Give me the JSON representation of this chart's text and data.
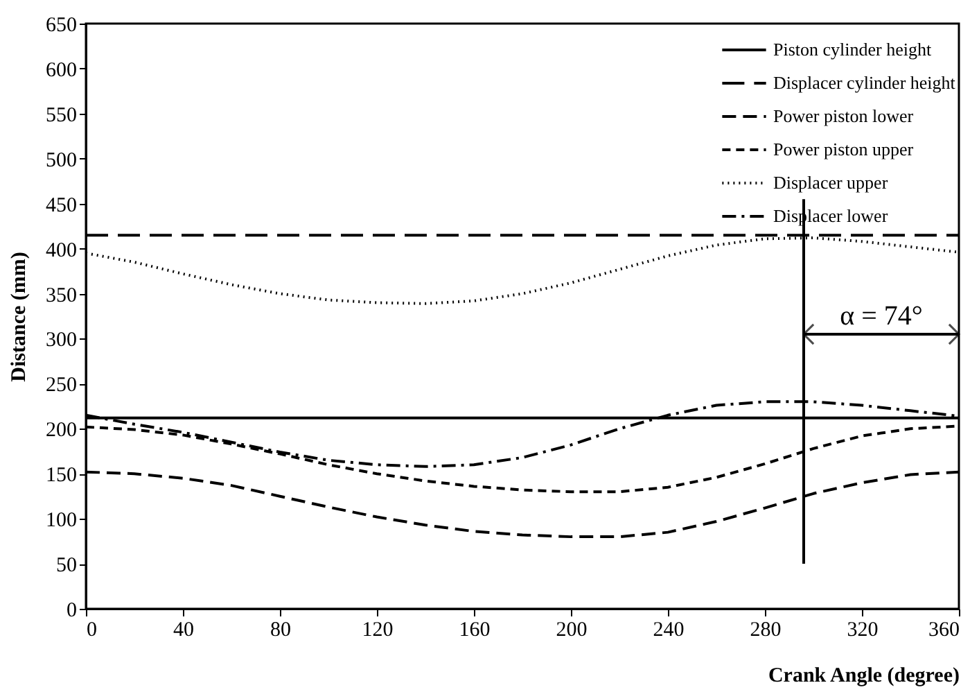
{
  "chart_data": {
    "type": "line",
    "xlabel": "Crank Angle (degree)",
    "ylabel": "Distance (mm)",
    "xlim": [
      0,
      360
    ],
    "xticks": [
      0,
      40,
      80,
      120,
      160,
      200,
      240,
      280,
      320,
      360
    ],
    "ylim": [
      0,
      650
    ],
    "yticks": [
      0,
      50,
      100,
      150,
      200,
      250,
      300,
      350,
      400,
      450,
      500,
      550,
      600,
      650
    ],
    "grid": false,
    "legend": "top right",
    "marker": "none",
    "series": [
      {
        "name": "Piston cylinder height",
        "color": "#000000",
        "line_style": "solid",
        "x": [
          0,
          360
        ],
        "values": [
          212,
          212
        ]
      },
      {
        "name": "Displacer cylinder height",
        "color": "#000000",
        "line_style": "longdash",
        "x": [
          0,
          360
        ],
        "values": [
          415,
          415
        ]
      },
      {
        "name": "Power piston lower",
        "color": "#000000",
        "line_style": "dashed",
        "x": [
          0,
          20,
          40,
          60,
          80,
          100,
          120,
          140,
          160,
          180,
          200,
          220,
          240,
          260,
          280,
          300,
          320,
          340,
          360
        ],
        "values": [
          152,
          150,
          145,
          137,
          125,
          113,
          102,
          93,
          86,
          82,
          80,
          80,
          85,
          97,
          112,
          128,
          140,
          149,
          152
        ]
      },
      {
        "name": "Power piston upper",
        "color": "#000000",
        "line_style": "shortdash",
        "x": [
          0,
          20,
          40,
          60,
          80,
          100,
          120,
          140,
          160,
          180,
          200,
          220,
          240,
          260,
          280,
          300,
          320,
          340,
          360
        ],
        "values": [
          202,
          199,
          193,
          183,
          172,
          160,
          150,
          142,
          136,
          132,
          130,
          130,
          135,
          146,
          161,
          178,
          192,
          200,
          203
        ]
      },
      {
        "name": "Displacer upper",
        "color": "#000000",
        "line_style": "dotted",
        "x": [
          0,
          20,
          40,
          60,
          80,
          100,
          120,
          140,
          160,
          180,
          200,
          220,
          240,
          260,
          280,
          300,
          320,
          340,
          360
        ],
        "values": [
          395,
          385,
          372,
          360,
          350,
          343,
          340,
          339,
          342,
          350,
          362,
          377,
          392,
          404,
          411,
          412,
          408,
          402,
          396
        ]
      },
      {
        "color": "#000000",
        "line_style": "solid",
        "x": [
          296,
          296
        ],
        "values": [
          50,
          455
        ]
      },
      {
        "color": "#000000",
        "line_style": "solid",
        "x": [
          296,
          360
        ],
        "values": [
          305,
          305
        ]
      },
      {
        "name": "Displacer lower",
        "color": "#000000",
        "line_style": "dashdot",
        "x": [
          0,
          20,
          40,
          60,
          80,
          100,
          120,
          140,
          160,
          180,
          200,
          220,
          240,
          260,
          280,
          300,
          320,
          340,
          360
        ],
        "values": [
          215,
          205,
          196,
          185,
          174,
          165,
          160,
          158,
          160,
          168,
          182,
          200,
          215,
          226,
          230,
          230,
          226,
          220,
          214
        ]
      }
    ],
    "annotations": [
      "α = 74°"
    ]
  }
}
